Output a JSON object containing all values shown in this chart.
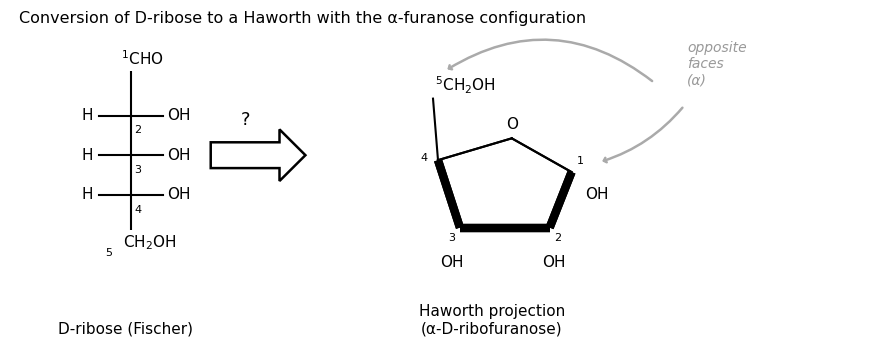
{
  "title": "Conversion of D-ribose to a Haworth with the α-furanose configuration",
  "title_fontsize": 11.5,
  "background_color": "#ffffff",
  "fischer_label": "D-ribose (Fischer)",
  "haworth_label": "Haworth projection\n(α-D-ribofuranose)",
  "opposite_faces_text": "opposite\nfaces\n(α)",
  "question_mark": "?",
  "arrow_color": "#aaaaaa",
  "line_color": "#000000",
  "gray_text_color": "#999999",
  "fig_width": 8.76,
  "fig_height": 3.6,
  "dpi": 100
}
